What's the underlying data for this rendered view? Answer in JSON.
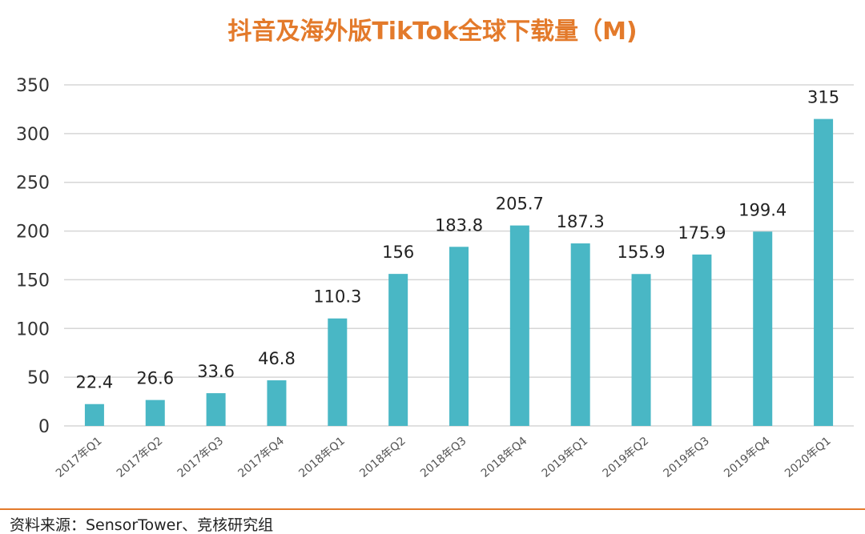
{
  "chart_data": {
    "type": "bar",
    "title": "抖音及海外版TikTok全球下载量（M)",
    "categories": [
      "2017年Q1",
      "2017年Q2",
      "2017年Q3",
      "2017年Q4",
      "2018年Q1",
      "2018年Q2",
      "2018年Q3",
      "2018年Q4",
      "2019年Q1",
      "2019年Q2",
      "2019年Q3",
      "2019年Q4",
      "2020年Q1"
    ],
    "values": [
      22.4,
      26.6,
      33.6,
      46.8,
      110.3,
      156,
      183.8,
      205.7,
      187.3,
      155.9,
      175.9,
      199.4,
      315
    ],
    "value_labels": [
      "22.4",
      "26.6",
      "33.6",
      "46.8",
      "110.3",
      "156",
      "183.8",
      "205.7",
      "187.3",
      "155.9",
      "175.9",
      "199.4",
      "315"
    ],
    "yticks": [
      "0",
      "50",
      "100",
      "150",
      "200",
      "250",
      "300",
      "350"
    ],
    "ylim": [
      0,
      350
    ],
    "grid": true,
    "legend": "none",
    "colors": {
      "bar": "#49b7c5",
      "title": "#e37a2b",
      "grid": "#d6d6d6",
      "footer_rule": "#e37a2b"
    }
  },
  "source": "资料来源：SensorTower、竞核研究组"
}
